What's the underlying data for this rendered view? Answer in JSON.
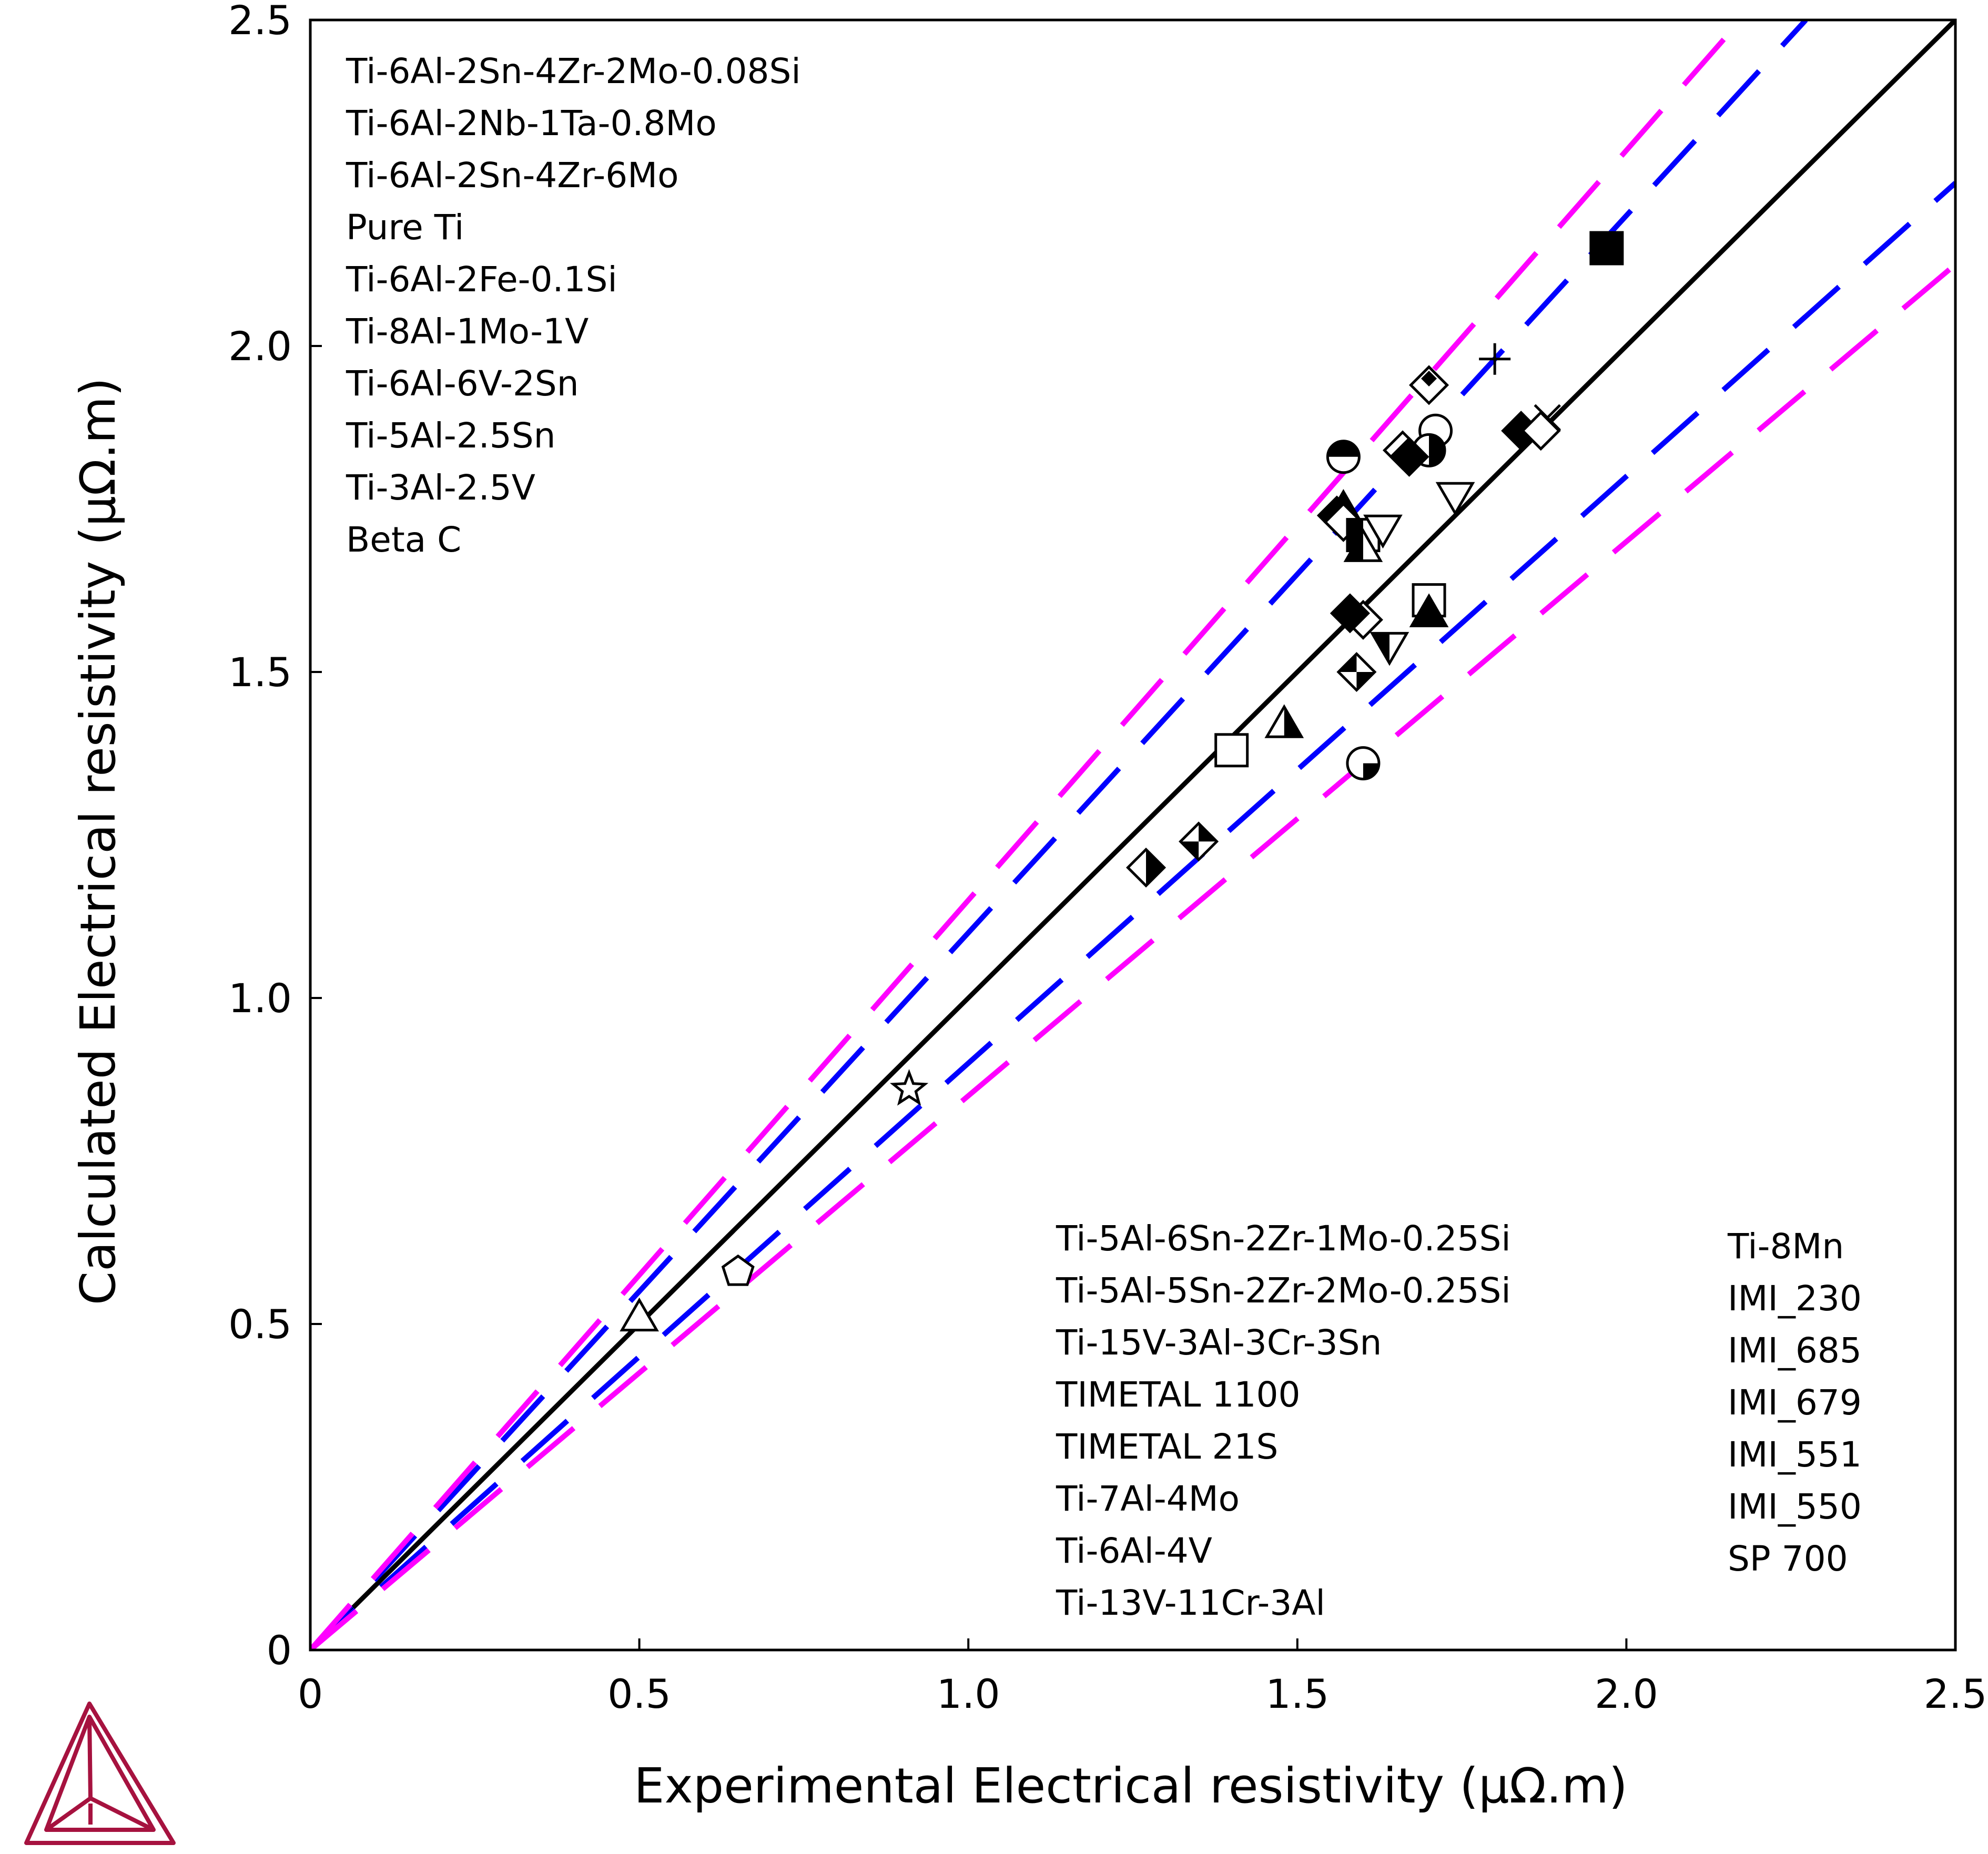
{
  "chart_data": {
    "type": "scatter",
    "xlabel": "Experimental Electrical resistivity (μΩ.m)",
    "ylabel": "Calculated Electrical resistivity (μΩ.m)",
    "xlim": [
      0,
      2.5
    ],
    "ylim": [
      0,
      2.5
    ],
    "x_ticks": [
      "0",
      "0.5",
      "1.0",
      "1.5",
      "2.0",
      "2.5"
    ],
    "y_ticks": [
      "0",
      "0.5",
      "1.0",
      "1.5",
      "2.0",
      "2.5"
    ],
    "grid": false,
    "legend_column_1": [
      "Ti-6Al-2Sn-4Zr-2Mo-0.08Si",
      "Ti-6Al-2Nb-1Ta-0.8Mo",
      "Ti-6Al-2Sn-4Zr-6Mo",
      "Pure Ti",
      "Ti-6Al-2Fe-0.1Si",
      "Ti-8Al-1Mo-1V",
      "Ti-6Al-6V-2Sn",
      "Ti-5Al-2.5Sn",
      "Ti-3Al-2.5V",
      "Beta C"
    ],
    "legend_column_2": [
      "Ti-5Al-6Sn-2Zr-1Mo-0.25Si",
      "Ti-5Al-5Sn-2Zr-2Mo-0.25Si",
      "Ti-15V-3Al-3Cr-3Sn",
      "TIMETAL 1100",
      "TIMETAL 21S",
      "Ti-7Al-4Mo",
      "Ti-6Al-4V",
      "Ti-13V-11Cr-3Al"
    ],
    "legend_column_3": [
      "Ti-8Mn",
      "IMI_230",
      "IMI_685",
      "IMI_679",
      "IMI_551",
      "IMI_550",
      "SP 700"
    ],
    "reference_lines": [
      {
        "slope": 1.0,
        "style": "solid",
        "color": "#000000"
      },
      {
        "slope": 1.1,
        "style": "dashed",
        "color": "#0000ff"
      },
      {
        "slope": 0.9,
        "style": "dashed",
        "color": "#0000ff"
      },
      {
        "slope": 1.15,
        "style": "dashed",
        "color": "#ff00ff"
      },
      {
        "slope": 0.85,
        "style": "dashed",
        "color": "#ff00ff"
      }
    ],
    "points": [
      {
        "x": 1.97,
        "y": 2.15,
        "marker": "square-filled"
      },
      {
        "x": 1.7,
        "y": 1.94,
        "marker": "diamond-open"
      },
      {
        "x": 1.7,
        "y": 1.95,
        "marker": "diamond-small-filled"
      },
      {
        "x": 1.8,
        "y": 1.98,
        "marker": "plus"
      },
      {
        "x": 1.88,
        "y": 1.89,
        "marker": "cross"
      },
      {
        "x": 1.84,
        "y": 1.87,
        "marker": "diamond-filled"
      },
      {
        "x": 1.87,
        "y": 1.87,
        "marker": "diamond-open"
      },
      {
        "x": 1.71,
        "y": 1.87,
        "marker": "circle-open"
      },
      {
        "x": 1.7,
        "y": 1.84,
        "marker": "circle-half-right"
      },
      {
        "x": 1.66,
        "y": 1.84,
        "marker": "diamond-open"
      },
      {
        "x": 1.67,
        "y": 1.83,
        "marker": "diamond-filled"
      },
      {
        "x": 1.57,
        "y": 1.83,
        "marker": "circle-half-top"
      },
      {
        "x": 1.74,
        "y": 1.77,
        "marker": "triangle-down-open"
      },
      {
        "x": 1.57,
        "y": 1.75,
        "marker": "triangle-filled"
      },
      {
        "x": 1.56,
        "y": 1.74,
        "marker": "diamond-filled"
      },
      {
        "x": 1.57,
        "y": 1.73,
        "marker": "diamond-open"
      },
      {
        "x": 1.6,
        "y": 1.71,
        "marker": "square-half-left"
      },
      {
        "x": 1.63,
        "y": 1.72,
        "marker": "triangle-down-open"
      },
      {
        "x": 1.6,
        "y": 1.69,
        "marker": "triangle-half-left"
      },
      {
        "x": 1.7,
        "y": 1.61,
        "marker": "square-open"
      },
      {
        "x": 1.7,
        "y": 1.59,
        "marker": "triangle-filled"
      },
      {
        "x": 1.6,
        "y": 1.58,
        "marker": "diamond-open"
      },
      {
        "x": 1.58,
        "y": 1.59,
        "marker": "diamond-filled"
      },
      {
        "x": 1.64,
        "y": 1.54,
        "marker": "triangle-down-half"
      },
      {
        "x": 1.59,
        "y": 1.5,
        "marker": "diamond-quarter"
      },
      {
        "x": 1.48,
        "y": 1.42,
        "marker": "triangle-half-right"
      },
      {
        "x": 1.4,
        "y": 1.38,
        "marker": "square-open"
      },
      {
        "x": 1.6,
        "y": 1.36,
        "marker": "circle-quarter"
      },
      {
        "x": 1.35,
        "y": 1.24,
        "marker": "diamond-hourglass"
      },
      {
        "x": 1.27,
        "y": 1.2,
        "marker": "diamond-half-right"
      },
      {
        "x": 0.91,
        "y": 0.86,
        "marker": "star-open"
      },
      {
        "x": 0.65,
        "y": 0.58,
        "marker": "pentagon-open"
      },
      {
        "x": 0.5,
        "y": 0.51,
        "marker": "triangle-open"
      }
    ]
  }
}
